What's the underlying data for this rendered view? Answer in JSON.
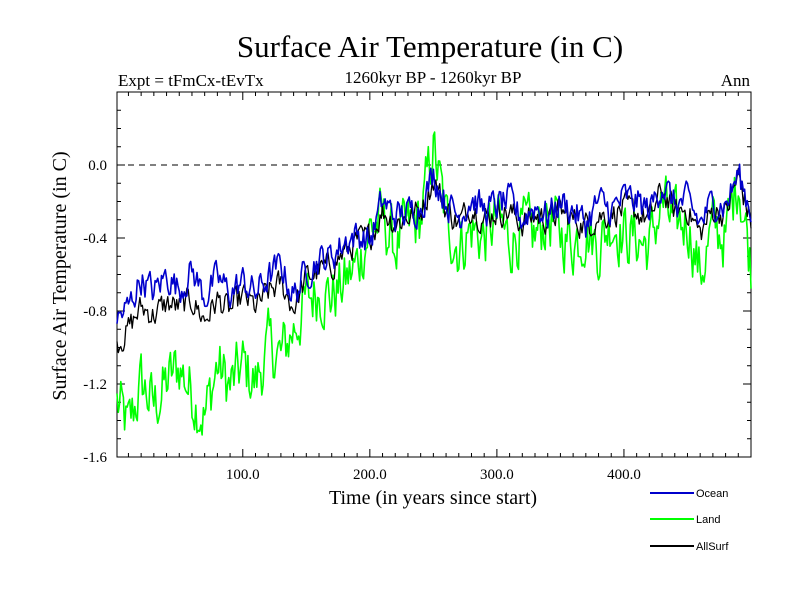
{
  "chart_data": {
    "type": "line",
    "title": "Surface Air Temperature (in C)",
    "subtitle": "1260kyr BP - 1260kyr BP",
    "left_label": "Expt = tFmCx-tEvTx",
    "right_label": "Ann",
    "xlabel": "Time (in years since start)",
    "ylabel": "Surface Air Temperature (in C)",
    "xlim": [
      1,
      500
    ],
    "ylim": [
      -1.6,
      0.4
    ],
    "reference_line": 0.0,
    "x_ticks": [
      100,
      200,
      300,
      400
    ],
    "x_tick_labels": [
      "100.0",
      "200.0",
      "300.0",
      "400.0"
    ],
    "y_ticks": [
      -1.6,
      -1.2,
      -0.8,
      -0.4,
      0.0
    ],
    "y_tick_labels": [
      "-1.6",
      "-1.2",
      "-0.8",
      "-0.4",
      "0.0"
    ],
    "legend_position": "bottom-right",
    "x_sample_years": [
      1,
      10,
      20,
      30,
      40,
      50,
      60,
      70,
      80,
      90,
      100,
      110,
      120,
      130,
      140,
      150,
      160,
      170,
      180,
      190,
      200,
      210,
      220,
      230,
      240,
      250,
      260,
      270,
      280,
      290,
      300,
      310,
      320,
      330,
      340,
      350,
      360,
      370,
      380,
      390,
      400,
      410,
      420,
      430,
      440,
      450,
      460,
      470,
      480,
      490,
      500
    ],
    "series": [
      {
        "name": "Ocean",
        "color": "#0000cc",
        "values": [
          -0.85,
          -0.78,
          -0.62,
          -0.7,
          -0.6,
          -0.68,
          -0.58,
          -0.72,
          -0.62,
          -0.7,
          -0.64,
          -0.7,
          -0.62,
          -0.55,
          -0.72,
          -0.58,
          -0.52,
          -0.5,
          -0.42,
          -0.38,
          -0.42,
          -0.2,
          -0.28,
          -0.26,
          -0.22,
          -0.05,
          -0.2,
          -0.28,
          -0.18,
          -0.25,
          -0.22,
          -0.2,
          -0.3,
          -0.22,
          -0.28,
          -0.2,
          -0.25,
          -0.32,
          -0.2,
          -0.25,
          -0.18,
          -0.2,
          -0.25,
          -0.1,
          -0.22,
          -0.2,
          -0.32,
          -0.2,
          -0.22,
          -0.05,
          -0.25
        ]
      },
      {
        "name": "Land",
        "color": "#00ff00",
        "values": [
          -1.3,
          -1.45,
          -1.2,
          -1.32,
          -1.2,
          -1.1,
          -1.25,
          -1.38,
          -1.1,
          -1.22,
          -1.1,
          -1.2,
          -1.0,
          -1.05,
          -0.9,
          -0.75,
          -0.68,
          -0.72,
          -0.65,
          -0.55,
          -0.35,
          -0.3,
          -0.45,
          -0.35,
          -0.3,
          0.1,
          -0.3,
          -0.45,
          -0.35,
          -0.4,
          -0.3,
          -0.42,
          -0.35,
          -0.4,
          -0.28,
          -0.38,
          -0.42,
          -0.35,
          -0.45,
          -0.3,
          -0.38,
          -0.4,
          -0.45,
          -0.2,
          -0.35,
          -0.3,
          -0.6,
          -0.35,
          -0.4,
          -0.05,
          -0.55
        ]
      },
      {
        "name": "AllSurf",
        "color": "#000000",
        "values": [
          -0.98,
          -0.9,
          -0.78,
          -0.82,
          -0.76,
          -0.78,
          -0.74,
          -0.85,
          -0.74,
          -0.8,
          -0.72,
          -0.78,
          -0.7,
          -0.65,
          -0.78,
          -0.62,
          -0.58,
          -0.55,
          -0.48,
          -0.42,
          -0.4,
          -0.25,
          -0.32,
          -0.28,
          -0.25,
          -0.08,
          -0.24,
          -0.32,
          -0.22,
          -0.3,
          -0.25,
          -0.26,
          -0.32,
          -0.28,
          -0.3,
          -0.25,
          -0.3,
          -0.33,
          -0.28,
          -0.27,
          -0.24,
          -0.26,
          -0.3,
          -0.14,
          -0.26,
          -0.24,
          -0.38,
          -0.25,
          -0.27,
          -0.06,
          -0.32
        ]
      }
    ]
  }
}
